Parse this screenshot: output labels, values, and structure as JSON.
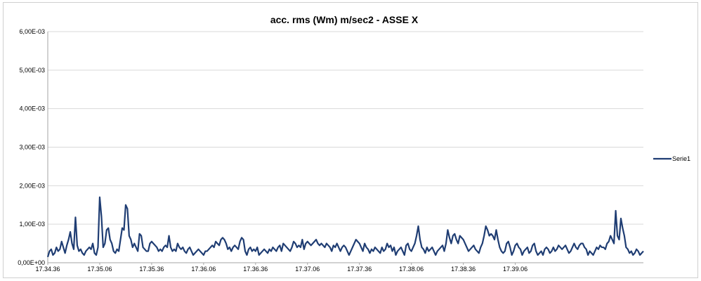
{
  "chart_data": {
    "type": "line",
    "title": "acc. rms (Wm) m/sec2 - ASSE X",
    "xlabel": "",
    "ylabel": "",
    "ylim": [
      0,
      0.006
    ],
    "y_ticks": [
      "0,00E+00",
      "1,00E-03",
      "2,00E-03",
      "3,00E-03",
      "4,00E-03",
      "5,00E-03",
      "6,00E-03"
    ],
    "y_tick_values": [
      0,
      0.001,
      0.002,
      0.003,
      0.004,
      0.005,
      0.006
    ],
    "x_ticks": [
      "17.34.36",
      "17.35.06",
      "17.35.36",
      "17.36.06",
      "17.36.36",
      "17.37.06",
      "17.37.36",
      "17.38.06",
      "17.38.36",
      "17.39.06"
    ],
    "x_tick_index": [
      0,
      30,
      60,
      90,
      120,
      150,
      180,
      210,
      240,
      270
    ],
    "grid": true,
    "legend_position": "right",
    "color": "#1f3d73",
    "series": [
      {
        "name": "Serie1",
        "values": [
          0.00015,
          0.0003,
          0.00035,
          0.0002,
          0.00025,
          0.0004,
          0.0003,
          0.00035,
          0.00055,
          0.0004,
          0.00025,
          0.00045,
          0.0006,
          0.0008,
          0.0005,
          0.00035,
          0.00118,
          0.00045,
          0.0003,
          0.00035,
          0.00025,
          0.0002,
          0.0003,
          0.00035,
          0.0004,
          0.00035,
          0.0005,
          0.00025,
          0.0002,
          0.0004,
          0.0017,
          0.0012,
          0.0004,
          0.0005,
          0.00085,
          0.0009,
          0.0006,
          0.0005,
          0.0003,
          0.00025,
          0.00035,
          0.0003,
          0.0006,
          0.0009,
          0.00085,
          0.0015,
          0.0014,
          0.0007,
          0.0006,
          0.0004,
          0.0005,
          0.0004,
          0.0003,
          0.00075,
          0.0007,
          0.0004,
          0.00035,
          0.0003,
          0.0003,
          0.0005,
          0.00055,
          0.0005,
          0.00045,
          0.0004,
          0.0003,
          0.00035,
          0.0003,
          0.0004,
          0.00045,
          0.0004,
          0.0007,
          0.0004,
          0.0003,
          0.00035,
          0.0003,
          0.0005,
          0.0004,
          0.00035,
          0.0004,
          0.0003,
          0.00025,
          0.00035,
          0.0004,
          0.0003,
          0.0002,
          0.00025,
          0.0003,
          0.00035,
          0.0003,
          0.00025,
          0.0002,
          0.0003,
          0.0003,
          0.00035,
          0.0004,
          0.00045,
          0.0004,
          0.00055,
          0.0005,
          0.00045,
          0.0006,
          0.00065,
          0.0006,
          0.0005,
          0.00035,
          0.0004,
          0.0003,
          0.0004,
          0.00045,
          0.0004,
          0.00035,
          0.00055,
          0.00065,
          0.0006,
          0.0003,
          0.0002,
          0.00035,
          0.0004,
          0.0003,
          0.00035,
          0.0003,
          0.0004,
          0.0002,
          0.00025,
          0.0003,
          0.00035,
          0.0003,
          0.00025,
          0.00035,
          0.0003,
          0.0004,
          0.00035,
          0.0003,
          0.0004,
          0.00045,
          0.0003,
          0.0005,
          0.00045,
          0.0004,
          0.00035,
          0.0003,
          0.0004,
          0.00055,
          0.0005,
          0.0004,
          0.00045,
          0.0004,
          0.0006,
          0.00035,
          0.0005,
          0.00055,
          0.0005,
          0.00045,
          0.0005,
          0.00055,
          0.0006,
          0.0005,
          0.00045,
          0.0005,
          0.00045,
          0.0004,
          0.0005,
          0.00045,
          0.0004,
          0.0003,
          0.00045,
          0.0004,
          0.0005,
          0.0004,
          0.0003,
          0.0004,
          0.00045,
          0.0004,
          0.0003,
          0.0002,
          0.0003,
          0.0004,
          0.0005,
          0.0006,
          0.00055,
          0.0005,
          0.0004,
          0.0003,
          0.0005,
          0.0004,
          0.00035,
          0.00025,
          0.00035,
          0.0003,
          0.0004,
          0.00035,
          0.0003,
          0.00025,
          0.0004,
          0.0003,
          0.00035,
          0.0005,
          0.0004,
          0.00045,
          0.0003,
          0.0004,
          0.0002,
          0.0003,
          0.00035,
          0.0004,
          0.0003,
          0.0002,
          0.00045,
          0.0005,
          0.00035,
          0.0003,
          0.0004,
          0.0005,
          0.0007,
          0.00095,
          0.0006,
          0.0004,
          0.00035,
          0.00025,
          0.0004,
          0.0003,
          0.00035,
          0.0004,
          0.0003,
          0.0002,
          0.0003,
          0.00035,
          0.0004,
          0.00045,
          0.0003,
          0.0005,
          0.00085,
          0.00065,
          0.0005,
          0.0007,
          0.00075,
          0.0006,
          0.0005,
          0.0007,
          0.00065,
          0.0006,
          0.0005,
          0.0004,
          0.0003,
          0.00035,
          0.0004,
          0.00045,
          0.00035,
          0.0003,
          0.00025,
          0.0004,
          0.0005,
          0.0007,
          0.00095,
          0.00085,
          0.0007,
          0.00075,
          0.0007,
          0.0006,
          0.00085,
          0.0006,
          0.0004,
          0.0003,
          0.00025,
          0.0003,
          0.0005,
          0.00055,
          0.0004,
          0.0002,
          0.0003,
          0.00045,
          0.0005,
          0.0004,
          0.00035,
          0.0002,
          0.0003,
          0.00035,
          0.0004,
          0.00025,
          0.0003,
          0.00045,
          0.0005,
          0.0003,
          0.0002,
          0.00025,
          0.0003,
          0.0002,
          0.00035,
          0.0004,
          0.00035,
          0.00025,
          0.0003,
          0.0004,
          0.0003,
          0.00035,
          0.00045,
          0.0004,
          0.00035,
          0.0004,
          0.00045,
          0.00035,
          0.00025,
          0.0003,
          0.0004,
          0.0005,
          0.0004,
          0.00035,
          0.00045,
          0.0005,
          0.0005,
          0.0004,
          0.00035,
          0.0002,
          0.0003,
          0.00025,
          0.0002,
          0.0003,
          0.0004,
          0.00035,
          0.00045,
          0.0004,
          0.0004,
          0.00035,
          0.0005,
          0.00055,
          0.0007,
          0.0006,
          0.0005,
          0.00135,
          0.0007,
          0.0006,
          0.00115,
          0.0009,
          0.0007,
          0.0004,
          0.00035,
          0.00025,
          0.0003,
          0.0002,
          0.00025,
          0.00035,
          0.0003,
          0.0002,
          0.00025,
          0.0003
        ]
      }
    ]
  }
}
